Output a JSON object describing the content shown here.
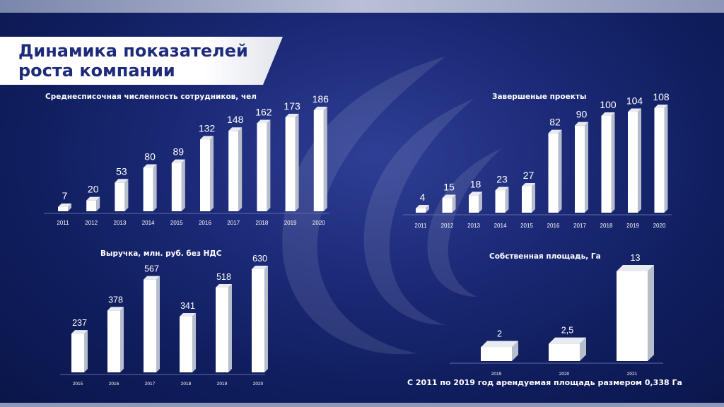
{
  "slide": {
    "title": "Динамика показателей роста компании",
    "footnote": "С 2011 по 2019 год арендуемая площадь размером 0,338 Га"
  },
  "colors": {
    "background": "#1c2a78",
    "bar_face": "#ffffff",
    "bar_side": "#b8bdcc",
    "title_text": "#1d2b7a"
  },
  "chart_data": [
    {
      "type": "bar",
      "title": "Среднесписочная численность сотрудников, чел",
      "categories": [
        "2011",
        "2012",
        "2013",
        "2014",
        "2015",
        "2016",
        "2017",
        "2018",
        "2019",
        "2020"
      ],
      "values": [
        7,
        20,
        53,
        80,
        89,
        132,
        148,
        162,
        173,
        186
      ],
      "labels": [
        "7",
        "20",
        "53",
        "80",
        "89",
        "132",
        "148",
        "162",
        "173",
        "186"
      ],
      "ylim": [
        0,
        186
      ]
    },
    {
      "type": "bar",
      "title": "Завершеные проекты",
      "categories": [
        "2011",
        "2012",
        "2013",
        "2014",
        "2015",
        "2016",
        "2017",
        "2018",
        "2019",
        "2020"
      ],
      "values": [
        4,
        15,
        18,
        23,
        27,
        82,
        90,
        100,
        104,
        108
      ],
      "labels": [
        "4",
        "15",
        "18",
        "23",
        "27",
        "82",
        "90",
        "100",
        "104",
        "108"
      ],
      "ylim": [
        0,
        108
      ]
    },
    {
      "type": "bar",
      "title": "Выручка, млн. руб. без НДС",
      "categories": [
        "2015",
        "2016",
        "2017",
        "2018",
        "2019",
        "2020"
      ],
      "values": [
        237,
        378,
        567,
        341,
        518,
        630
      ],
      "labels": [
        "237",
        "378",
        "567",
        "341",
        "518",
        "630"
      ],
      "ylim": [
        0,
        630
      ]
    },
    {
      "type": "bar",
      "title": "Собственная площадь, Га",
      "categories": [
        "2019",
        "2020",
        "2021"
      ],
      "values": [
        2,
        2.5,
        13
      ],
      "labels": [
        "2",
        "2,5",
        "13"
      ],
      "ylim": [
        0,
        13
      ]
    }
  ]
}
